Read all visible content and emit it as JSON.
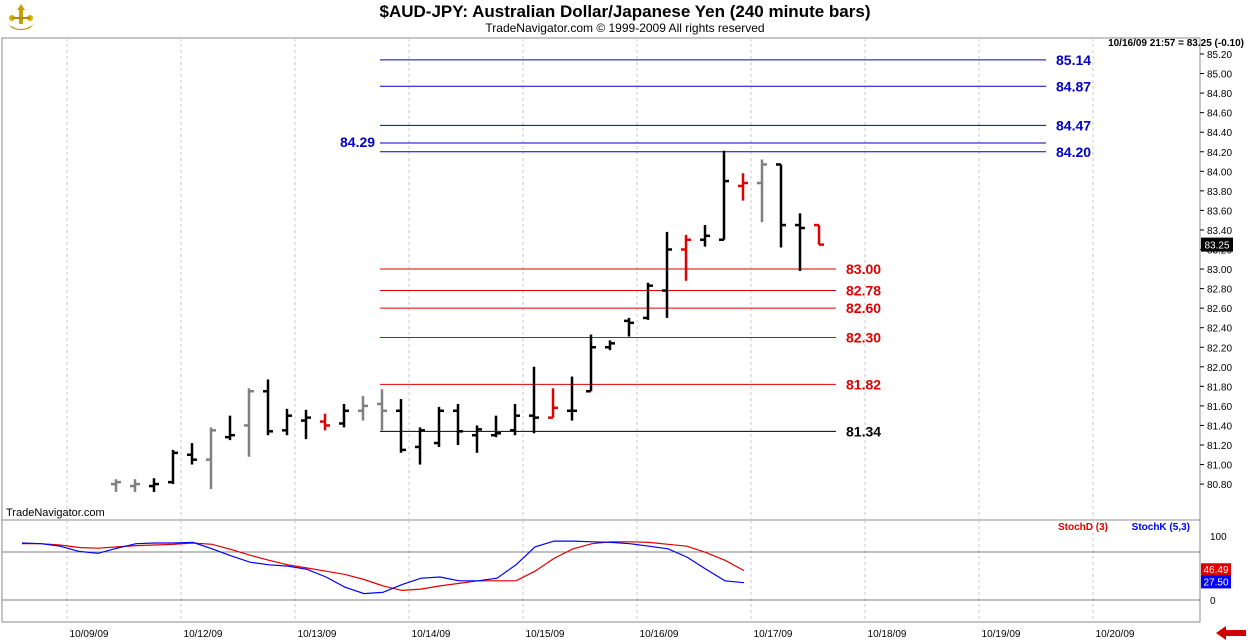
{
  "header": {
    "title": "$AUD-JPY:  Australian Dollar/Japanese Yen  (240 minute bars)",
    "copyright": "TradeNavigator.com © 1999-2009 All rights reserved",
    "last_quote": "10/16/09 21:57 = 83.25 (-0.10)",
    "watermark": "TradeNavigator.com"
  },
  "colors": {
    "price_up": "#000000",
    "price_neutral": "#808080",
    "price_red": "#e00000",
    "resistance": "#0000c8",
    "support": "#e00000",
    "base_line": "#000000",
    "stoch_d": "#e00000",
    "stoch_k": "#0000ff"
  },
  "chart_data": [
    {
      "type": "ohlc",
      "title": "$AUD-JPY:  Australian Dollar/Japanese Yen  (240 minute bars)",
      "x_tick_labels": [
        "10/09/09",
        "10/12/09",
        "10/13/09",
        "10/14/09",
        "10/15/09",
        "10/16/09",
        "10/17/09",
        "10/18/09",
        "10/19/09",
        "10/20/09"
      ],
      "y_tick_labels": [
        "85.20",
        "85.00",
        "84.80",
        "84.60",
        "84.40",
        "84.20",
        "84.00",
        "83.80",
        "83.60",
        "83.40",
        "83.20",
        "83.00",
        "82.80",
        "82.60",
        "82.40",
        "82.20",
        "82.00",
        "81.80",
        "81.60",
        "81.40",
        "81.20",
        "81.00",
        "80.80"
      ],
      "ylim": [
        80.72,
        85.28
      ],
      "last_price": "83.25",
      "grid": true,
      "bars": [
        {
          "open": 80.8,
          "high": 80.85,
          "low": 80.72,
          "close": 80.82,
          "color": "gray"
        },
        {
          "open": 80.78,
          "high": 80.85,
          "low": 80.72,
          "close": 80.8,
          "color": "gray"
        },
        {
          "open": 80.78,
          "high": 80.86,
          "low": 80.72,
          "close": 80.8,
          "color": "black"
        },
        {
          "open": 80.82,
          "high": 81.15,
          "low": 80.8,
          "close": 81.12,
          "color": "black"
        },
        {
          "open": 81.1,
          "high": 81.22,
          "low": 81.0,
          "close": 81.05,
          "color": "black"
        },
        {
          "open": 81.05,
          "high": 81.38,
          "low": 80.75,
          "close": 81.35,
          "color": "gray"
        },
        {
          "open": 81.28,
          "high": 81.5,
          "low": 81.25,
          "close": 81.3,
          "color": "black"
        },
        {
          "open": 81.4,
          "high": 81.78,
          "low": 81.08,
          "close": 81.75,
          "color": "gray"
        },
        {
          "open": 81.75,
          "high": 81.87,
          "low": 81.3,
          "close": 81.34,
          "color": "black"
        },
        {
          "open": 81.35,
          "high": 81.57,
          "low": 81.3,
          "close": 81.5,
          "color": "black"
        },
        {
          "open": 81.45,
          "high": 81.56,
          "low": 81.26,
          "close": 81.48,
          "color": "black"
        },
        {
          "open": 81.44,
          "high": 81.52,
          "low": 81.35,
          "close": 81.4,
          "color": "red"
        },
        {
          "open": 81.42,
          "high": 81.62,
          "low": 81.38,
          "close": 81.55,
          "color": "black"
        },
        {
          "open": 81.55,
          "high": 81.7,
          "low": 81.45,
          "close": 81.6,
          "color": "gray"
        },
        {
          "open": 81.62,
          "high": 81.77,
          "low": 81.35,
          "close": 81.55,
          "color": "gray"
        },
        {
          "open": 81.55,
          "high": 81.67,
          "low": 81.12,
          "close": 81.15,
          "color": "black"
        },
        {
          "open": 81.18,
          "high": 81.38,
          "low": 81.0,
          "close": 81.35,
          "color": "black"
        },
        {
          "open": 81.22,
          "high": 81.59,
          "low": 81.18,
          "close": 81.55,
          "color": "black"
        },
        {
          "open": 81.55,
          "high": 81.62,
          "low": 81.2,
          "close": 81.34,
          "color": "black"
        },
        {
          "open": 81.3,
          "high": 81.4,
          "low": 81.12,
          "close": 81.36,
          "color": "black"
        },
        {
          "open": 81.3,
          "high": 81.5,
          "low": 81.28,
          "close": 81.32,
          "color": "black"
        },
        {
          "open": 81.35,
          "high": 81.62,
          "low": 81.3,
          "close": 81.5,
          "color": "black"
        },
        {
          "open": 81.5,
          "high": 82.0,
          "low": 81.32,
          "close": 81.48,
          "color": "black"
        },
        {
          "open": 81.48,
          "high": 81.78,
          "low": 81.48,
          "close": 81.58,
          "color": "red"
        },
        {
          "open": 81.55,
          "high": 81.9,
          "low": 81.45,
          "close": 81.55,
          "color": "black"
        },
        {
          "open": 81.75,
          "high": 82.33,
          "low": 81.75,
          "close": 82.2,
          "color": "black"
        },
        {
          "open": 82.2,
          "high": 82.27,
          "low": 82.17,
          "close": 82.24,
          "color": "black"
        },
        {
          "open": 82.47,
          "high": 82.5,
          "low": 82.31,
          "close": 82.45,
          "color": "black"
        },
        {
          "open": 82.5,
          "high": 82.86,
          "low": 82.48,
          "close": 82.83,
          "color": "black"
        },
        {
          "open": 82.78,
          "high": 83.38,
          "low": 82.5,
          "close": 83.2,
          "color": "black"
        },
        {
          "open": 83.2,
          "high": 83.35,
          "low": 82.88,
          "close": 83.3,
          "color": "red"
        },
        {
          "open": 83.3,
          "high": 83.45,
          "low": 83.23,
          "close": 83.34,
          "color": "black"
        },
        {
          "open": 83.3,
          "high": 84.21,
          "low": 83.3,
          "close": 83.9,
          "color": "black"
        },
        {
          "open": 83.85,
          "high": 83.98,
          "low": 83.7,
          "close": 83.88,
          "color": "red"
        },
        {
          "open": 83.88,
          "high": 84.12,
          "low": 83.48,
          "close": 84.07,
          "color": "gray"
        },
        {
          "open": 84.07,
          "high": 84.07,
          "low": 83.22,
          "close": 83.45,
          "color": "black"
        },
        {
          "open": 83.45,
          "high": 83.57,
          "low": 82.98,
          "close": 83.42,
          "color": "black"
        },
        {
          "open": 83.45,
          "high": 83.45,
          "low": 83.25,
          "close": 83.25,
          "color": "red"
        }
      ],
      "levels": [
        {
          "value": 85.14,
          "label": "85.14",
          "group": "resistance"
        },
        {
          "value": 84.87,
          "label": "84.87",
          "group": "resistance"
        },
        {
          "value": 84.47,
          "label": "84.47",
          "group": "resistance"
        },
        {
          "value": 84.29,
          "label": "84.29",
          "group": "resistance"
        },
        {
          "value": 84.2,
          "label": "84.20",
          "group": "resistance"
        },
        {
          "value": 83.0,
          "label": "83.00",
          "group": "support"
        },
        {
          "value": 82.78,
          "label": "82.78",
          "group": "support"
        },
        {
          "value": 82.6,
          "label": "82.60",
          "group": "support"
        },
        {
          "value": 82.3,
          "label": "82.30",
          "group": "support"
        },
        {
          "value": 81.82,
          "label": "81.82",
          "group": "support"
        },
        {
          "value": 81.34,
          "label": "81.34",
          "group": "base"
        }
      ]
    },
    {
      "type": "line",
      "ylim": [
        0,
        100
      ],
      "y_tick_labels": [
        "100",
        "0"
      ],
      "legend": [
        "StochD (3)",
        "StochK (5,3)"
      ],
      "last_values": {
        "StochD (3)": "46.49",
        "StochK (5,3)": "27.50"
      },
      "series": [
        {
          "name": "StochD (3)",
          "color": "red",
          "values": [
            88,
            88,
            86,
            82,
            81,
            83,
            85,
            86,
            87,
            89,
            87,
            79,
            70,
            62,
            55,
            50,
            45,
            40,
            32,
            22,
            15,
            17,
            22,
            26,
            30,
            30,
            30,
            45,
            65,
            80,
            88,
            91,
            91,
            90,
            87,
            84,
            74,
            62,
            46
          ]
        },
        {
          "name": "StochK (5,3)",
          "color": "blue",
          "values": [
            89,
            88,
            84,
            76,
            73,
            81,
            88,
            89,
            89,
            90,
            80,
            69,
            59,
            55,
            53,
            48,
            36,
            20,
            10,
            12,
            24,
            34,
            36,
            30,
            30,
            34,
            55,
            83,
            92,
            92,
            91,
            90,
            88,
            84,
            80,
            67,
            48,
            30,
            27
          ]
        }
      ]
    }
  ]
}
